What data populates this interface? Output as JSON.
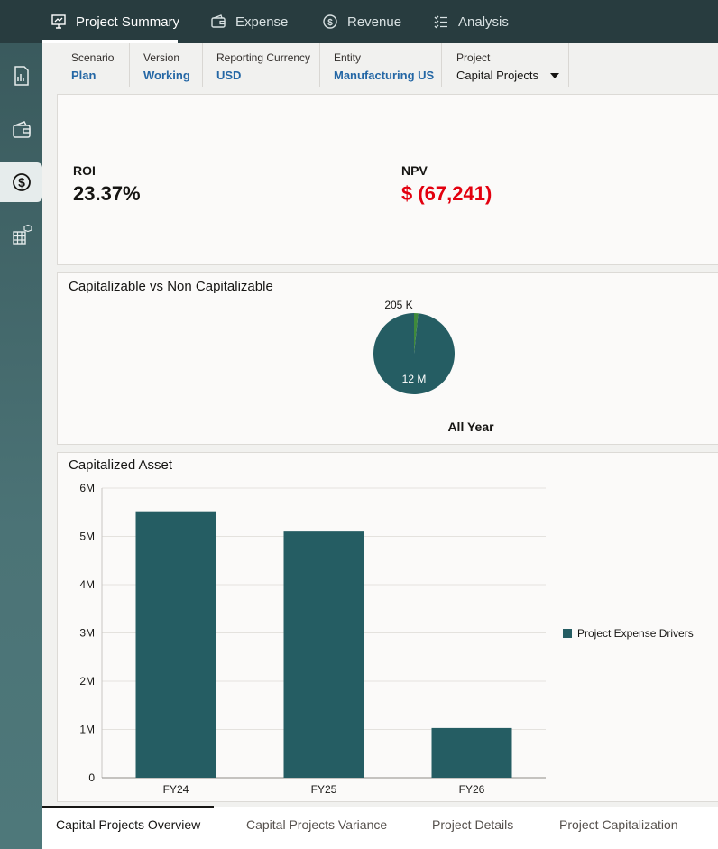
{
  "top_tabs": [
    {
      "label": "Project Summary",
      "icon": "presentation-icon",
      "active": true
    },
    {
      "label": "Expense",
      "icon": "wallet-icon",
      "active": false
    },
    {
      "label": "Revenue",
      "icon": "dollar-cycle-icon",
      "active": false
    },
    {
      "label": "Analysis",
      "icon": "checklist-icon",
      "active": false
    }
  ],
  "rail_items": [
    "report-icon",
    "wallet-icon",
    "dollar-cycle-icon",
    "grid-cube-icon"
  ],
  "pov": [
    {
      "label": "Scenario",
      "value": "Plan"
    },
    {
      "label": "Version",
      "value": "Working"
    },
    {
      "label": "Reporting Currency",
      "value": "USD"
    },
    {
      "label": "Entity",
      "value": "Manufacturing US"
    },
    {
      "label": "Project",
      "value": "Capital Projects"
    }
  ],
  "kpis": {
    "roi_label": "ROI",
    "roi_value": "23.37%",
    "npv_label": "NPV",
    "npv_value": "$ (67,241)",
    "npv_color": "#e3000f"
  },
  "pie_panel": {
    "title": "Capitalizable vs Non Capitalizable",
    "footer": "All Year"
  },
  "bar_panel": {
    "title": "Capitalized Asset"
  },
  "colors": {
    "teal": "#255d63",
    "green": "#3f8a3b"
  },
  "bottom_tabs": [
    {
      "label": "Capital Projects Overview",
      "active": true
    },
    {
      "label": "Capital Projects Variance",
      "active": false
    },
    {
      "label": "Project Details",
      "active": false
    },
    {
      "label": "Project Capitalization",
      "active": false
    }
  ],
  "chart_data": [
    {
      "type": "pie",
      "title": "Capitalizable vs Non Capitalizable",
      "slices": [
        {
          "label": "205 K",
          "value": 205000,
          "color": "#3f8a3b"
        },
        {
          "label": "12 M",
          "value": 12000000,
          "color": "#255d63"
        }
      ],
      "footer": "All Year"
    },
    {
      "type": "bar",
      "title": "Capitalized Asset",
      "categories": [
        "FY24",
        "FY25",
        "FY26"
      ],
      "series": [
        {
          "name": "Project Expense Drivers",
          "values": [
            5520000,
            5100000,
            1030000
          ]
        }
      ],
      "ylim": [
        0,
        6000000
      ],
      "yticks": [
        "0",
        "1M",
        "2M",
        "3M",
        "4M",
        "5M",
        "6M"
      ],
      "grid": true,
      "legend": "right"
    }
  ]
}
